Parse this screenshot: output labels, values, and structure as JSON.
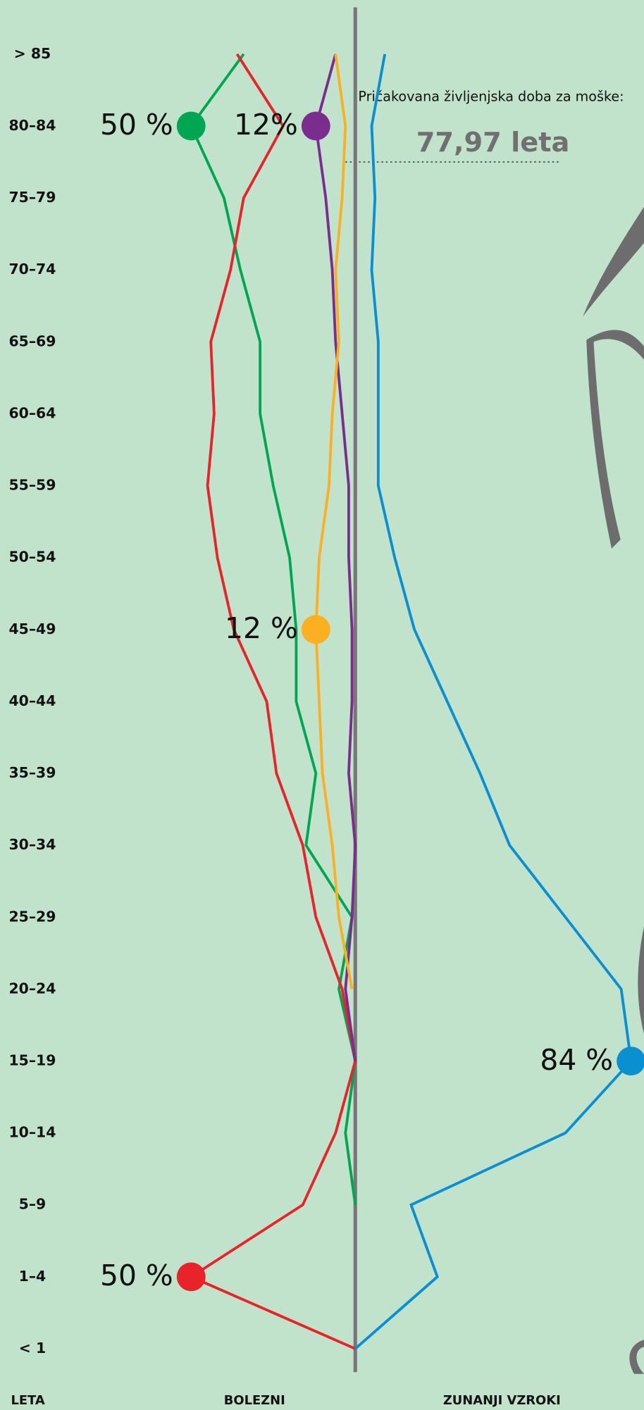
{
  "chart_data": {
    "type": "line",
    "categories": [
      "> 85",
      "80–84",
      "75–79",
      "70–74",
      "65–69",
      "60–64",
      "55–59",
      "50–54",
      "45–49",
      "40–44",
      "35–39",
      "30–34",
      "25–29",
      "20–24",
      "15–19",
      "10–14",
      "5–9",
      "1–4",
      "< 1"
    ],
    "xlim": [
      0,
      100
    ],
    "series": [
      {
        "color": "#00a651",
        "side": "left",
        "values": [
          34,
          50,
          40,
          35,
          29,
          29,
          25,
          20,
          18,
          18,
          12,
          15,
          1,
          5,
          0,
          3,
          0,
          null,
          null
        ],
        "value_labels": [
          null,
          "50 %",
          null,
          null,
          null,
          null,
          null,
          null,
          null,
          null,
          null,
          null,
          null,
          null,
          null,
          null,
          null,
          null,
          null
        ]
      },
      {
        "color": "#e8232a",
        "side": "left",
        "values": [
          36,
          22,
          34,
          38,
          44,
          43,
          45,
          42,
          37,
          27,
          24,
          16,
          12,
          4,
          0,
          6,
          16,
          50,
          0
        ],
        "value_labels": [
          null,
          null,
          null,
          null,
          null,
          null,
          null,
          null,
          null,
          null,
          null,
          null,
          null,
          null,
          null,
          null,
          null,
          "50 %",
          null
        ]
      },
      {
        "color": "#7b2d8e",
        "side": "left",
        "values": [
          6,
          12,
          9,
          7,
          6,
          4,
          2,
          2,
          1,
          1,
          2,
          0,
          1,
          3,
          0,
          null,
          null,
          null,
          null
        ],
        "value_labels": [
          null,
          "12%",
          null,
          null,
          null,
          null,
          null,
          null,
          null,
          null,
          null,
          null,
          null,
          null,
          null,
          null,
          null,
          null,
          null
        ]
      },
      {
        "color": "#fbb021",
        "side": "left",
        "values": [
          6,
          3,
          4,
          6,
          5,
          7,
          8,
          11,
          12,
          11,
          10,
          7,
          5,
          1,
          null,
          null,
          null,
          null,
          null
        ],
        "value_labels": [
          null,
          null,
          null,
          null,
          null,
          null,
          null,
          null,
          "12 %",
          null,
          null,
          null,
          null,
          null,
          null,
          null,
          null,
          null,
          null
        ]
      },
      {
        "color": "#0a8fd0",
        "side": "right",
        "values": [
          9,
          5,
          6,
          5,
          7,
          7,
          7,
          12,
          18,
          28,
          38,
          47,
          64,
          81,
          84,
          64,
          17,
          25,
          0
        ],
        "value_labels": [
          null,
          null,
          null,
          null,
          null,
          null,
          null,
          null,
          null,
          null,
          null,
          null,
          null,
          null,
          "84 %",
          null,
          null,
          null,
          null
        ]
      }
    ],
    "annotation": {
      "text": "Pričakovana življenjska doba za moške:",
      "value": "77,97 leta"
    },
    "axis_labels": {
      "age": "LETA",
      "left": "BOLEZNI",
      "right": "ZUNANJI VZROKI"
    }
  }
}
